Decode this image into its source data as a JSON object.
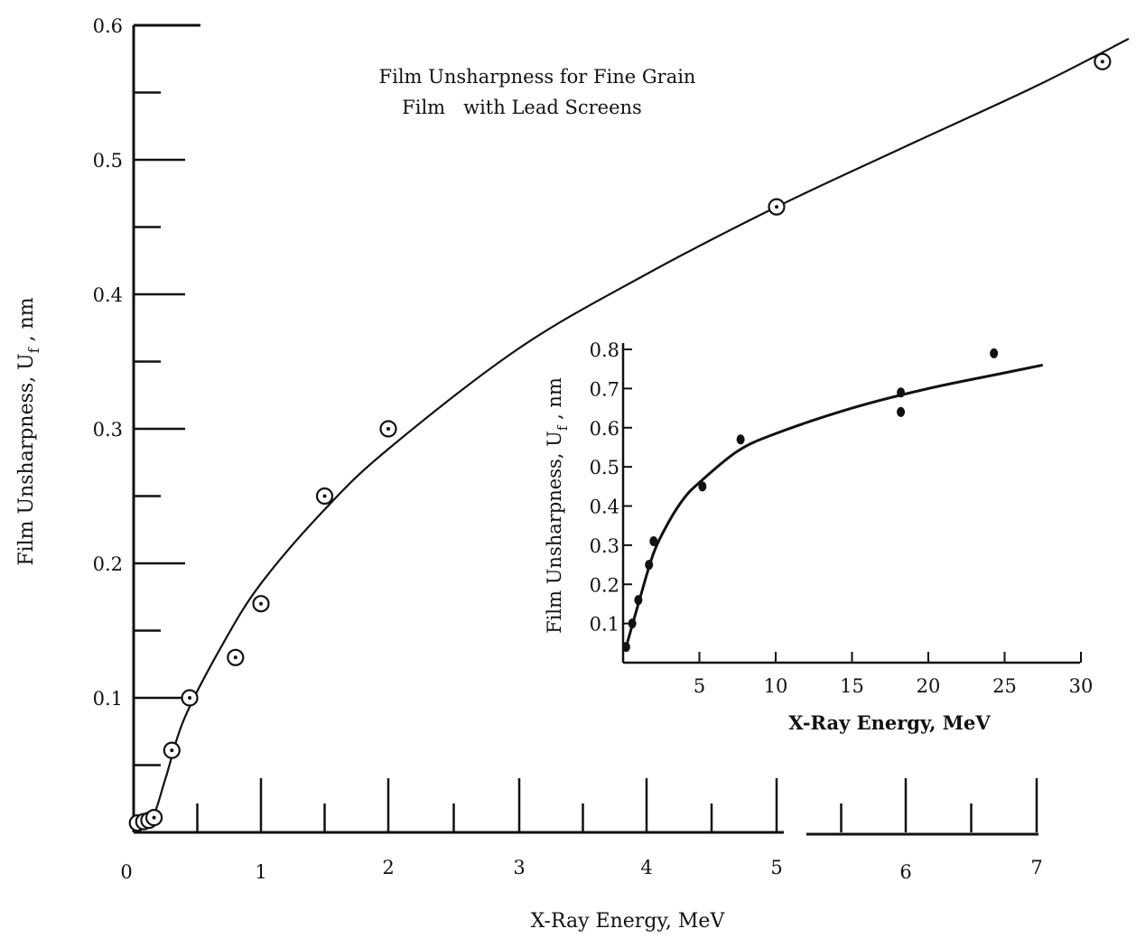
{
  "chart_data": [
    {
      "type": "scatter",
      "title": [
        "Film Unsharpness for Fine Grain",
        "Film   with Lead Screens"
      ],
      "xlabel": "X-Ray Energy, MeV",
      "ylabel": "Film Unsharpness, U_f , nm",
      "ylabel_parts": {
        "main": "Film Unsharpness, U",
        "sub": "f",
        "tail": " , nm"
      },
      "xlim": [
        0,
        7.7
      ],
      "ylim": [
        0,
        0.6
      ],
      "x_ticks": [
        {
          "value": 0,
          "label": "0"
        },
        {
          "value": 1,
          "label": "1"
        },
        {
          "value": 2,
          "label": "2"
        },
        {
          "value": 3,
          "label": "3"
        },
        {
          "value": 4,
          "label": "4"
        },
        {
          "value": 5,
          "label": "5"
        },
        {
          "value": 6,
          "label": "6"
        },
        {
          "value": 7,
          "label": "7"
        }
      ],
      "y_ticks": [
        {
          "value": 0.1,
          "label": "0.1"
        },
        {
          "value": 0.2,
          "label": "0.2"
        },
        {
          "value": 0.3,
          "label": "0.3"
        },
        {
          "value": 0.4,
          "label": "0.4"
        },
        {
          "value": 0.5,
          "label": "0.5"
        },
        {
          "value": 0.6,
          "label": "0.6"
        }
      ],
      "marker": "circled-dot",
      "points": [
        {
          "x": 0.03,
          "y": 0.007
        },
        {
          "x": 0.08,
          "y": 0.008
        },
        {
          "x": 0.12,
          "y": 0.009
        },
        {
          "x": 0.16,
          "y": 0.011
        },
        {
          "x": 0.3,
          "y": 0.061
        },
        {
          "x": 0.44,
          "y": 0.1
        },
        {
          "x": 0.8,
          "y": 0.13
        },
        {
          "x": 1.0,
          "y": 0.17
        },
        {
          "x": 1.5,
          "y": 0.25
        },
        {
          "x": 2.0,
          "y": 0.3
        },
        {
          "x": 5.0,
          "y": 0.465
        },
        {
          "x": 7.5,
          "y": 0.573
        }
      ],
      "fit_curve": [
        {
          "x": 0.03,
          "y": 0.007
        },
        {
          "x": 0.15,
          "y": 0.012
        },
        {
          "x": 0.25,
          "y": 0.04
        },
        {
          "x": 0.4,
          "y": 0.085
        },
        {
          "x": 0.7,
          "y": 0.14
        },
        {
          "x": 1.0,
          "y": 0.185
        },
        {
          "x": 1.5,
          "y": 0.24
        },
        {
          "x": 2.0,
          "y": 0.285
        },
        {
          "x": 3.0,
          "y": 0.36
        },
        {
          "x": 4.0,
          "y": 0.415
        },
        {
          "x": 5.0,
          "y": 0.465
        },
        {
          "x": 6.0,
          "y": 0.51
        },
        {
          "x": 7.0,
          "y": 0.555
        },
        {
          "x": 7.7,
          "y": 0.59
        }
      ]
    },
    {
      "type": "scatter",
      "title": "",
      "xlabel": "X-Ray Energy, MeV",
      "ylabel": "Film Unsharpness, U_f , nm",
      "ylabel_parts": {
        "main": "Film Unsharpness, U",
        "sub": "f",
        "tail": " , nm"
      },
      "xlim": [
        0,
        30
      ],
      "ylim": [
        0,
        0.8
      ],
      "x_ticks": [
        {
          "value": 5,
          "label": "5"
        },
        {
          "value": 10,
          "label": "10"
        },
        {
          "value": 15,
          "label": "15"
        },
        {
          "value": 20,
          "label": "20"
        },
        {
          "value": 25,
          "label": "25"
        },
        {
          "value": 30,
          "label": "30"
        }
      ],
      "y_ticks": [
        {
          "value": 0.1,
          "label": "0.1"
        },
        {
          "value": 0.2,
          "label": "0.2"
        },
        {
          "value": 0.3,
          "label": "0.3"
        },
        {
          "value": 0.4,
          "label": "0.4"
        },
        {
          "value": 0.5,
          "label": "0.5"
        },
        {
          "value": 0.6,
          "label": "0.6"
        },
        {
          "value": 0.7,
          "label": "0.7"
        },
        {
          "value": 0.8,
          "label": "0.8"
        }
      ],
      "marker": "dot",
      "points": [
        {
          "x": 0.2,
          "y": 0.04
        },
        {
          "x": 0.6,
          "y": 0.1
        },
        {
          "x": 1.0,
          "y": 0.16
        },
        {
          "x": 1.7,
          "y": 0.25
        },
        {
          "x": 2.0,
          "y": 0.31
        },
        {
          "x": 5.2,
          "y": 0.45
        },
        {
          "x": 7.7,
          "y": 0.57
        },
        {
          "x": 18.2,
          "y": 0.69
        },
        {
          "x": 18.2,
          "y": 0.64
        },
        {
          "x": 24.3,
          "y": 0.79
        }
      ],
      "fit_curve": [
        {
          "x": 0.2,
          "y": 0.04
        },
        {
          "x": 1.0,
          "y": 0.15
        },
        {
          "x": 2.0,
          "y": 0.28
        },
        {
          "x": 3.0,
          "y": 0.36
        },
        {
          "x": 4.0,
          "y": 0.42
        },
        {
          "x": 5.0,
          "y": 0.46
        },
        {
          "x": 7.5,
          "y": 0.54
        },
        {
          "x": 10.0,
          "y": 0.585
        },
        {
          "x": 15.0,
          "y": 0.65
        },
        {
          "x": 20.0,
          "y": 0.7
        },
        {
          "x": 25.0,
          "y": 0.74
        },
        {
          "x": 27.5,
          "y": 0.76
        }
      ]
    }
  ]
}
